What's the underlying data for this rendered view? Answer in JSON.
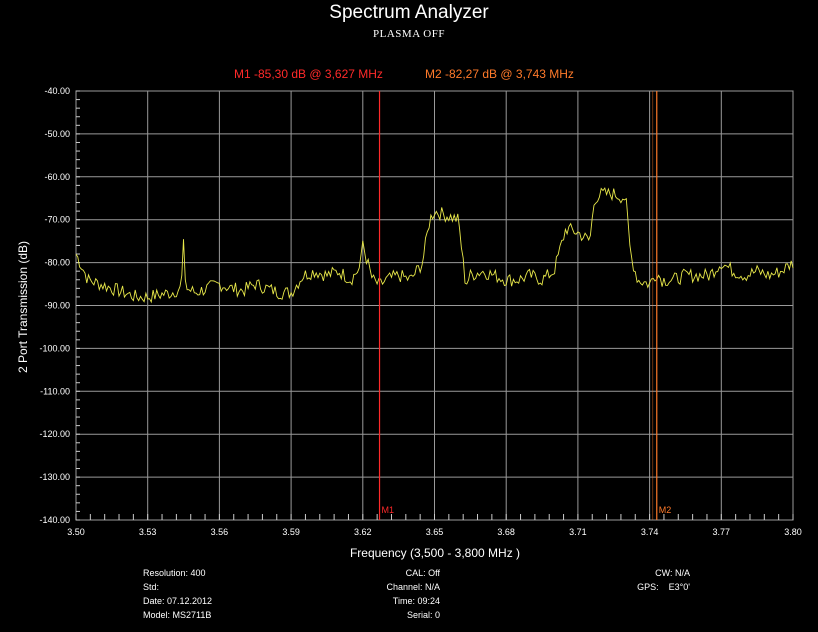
{
  "title": "Spectrum Analyzer",
  "subtitle": "PLASMA OFF",
  "markers": [
    {
      "name": "M1",
      "label": "M1  -85,30 dB @ 3,627 MHz",
      "freq": 3.627,
      "color": "#ff2a2a"
    },
    {
      "name": "M2",
      "label": "M2  -82,27 dB @ 3,743 MHz",
      "freq": 3.743,
      "color": "#ff7a2a"
    }
  ],
  "chart_data": {
    "type": "line",
    "title": "Spectrum Analyzer",
    "subtitle": "PLASMA OFF",
    "xlabel": "Frequency (3,500 - 3,800 MHz )",
    "ylabel": "2 Port Transmission (dB)",
    "xlim": [
      3.5,
      3.8
    ],
    "ylim": [
      -140,
      -40
    ],
    "xticks": [
      "3.50",
      "3.53",
      "3.56",
      "3.59",
      "3.62",
      "3.65",
      "3.68",
      "3.71",
      "3.74",
      "3.77",
      "3.80"
    ],
    "yticks": [
      "-40.00",
      "-50.00",
      "-60.00",
      "-70.00",
      "-80.00",
      "-90.00",
      "-100.00",
      "-110.00",
      "-120.00",
      "-130.00",
      "-140.00"
    ],
    "grid": true,
    "series": [
      {
        "color": "#e8e84a",
        "x": [
          3.5,
          3.505,
          3.51,
          3.515,
          3.52,
          3.525,
          3.53,
          3.535,
          3.54,
          3.544,
          3.545,
          3.546,
          3.55,
          3.555,
          3.56,
          3.565,
          3.57,
          3.575,
          3.58,
          3.585,
          3.59,
          3.595,
          3.6,
          3.605,
          3.61,
          3.615,
          3.619,
          3.62,
          3.621,
          3.624,
          3.627,
          3.63,
          3.635,
          3.64,
          3.645,
          3.648,
          3.65,
          3.655,
          3.66,
          3.663,
          3.665,
          3.67,
          3.675,
          3.68,
          3.685,
          3.69,
          3.695,
          3.7,
          3.703,
          3.705,
          3.71,
          3.715,
          3.717,
          3.72,
          3.725,
          3.73,
          3.732,
          3.735,
          3.74,
          3.743,
          3.745,
          3.75,
          3.755,
          3.76,
          3.765,
          3.77,
          3.775,
          3.78,
          3.785,
          3.79,
          3.795,
          3.8
        ],
        "y": [
          -78,
          -84,
          -85,
          -86,
          -87,
          -88,
          -88,
          -87.5,
          -87,
          -86,
          -76,
          -86,
          -87,
          -86,
          -85,
          -86,
          -86.5,
          -85,
          -86,
          -87,
          -87,
          -83,
          -82,
          -83,
          -82,
          -84,
          -81,
          -75,
          -78,
          -84,
          -85.3,
          -84,
          -83,
          -84,
          -80,
          -70,
          -68,
          -69,
          -70,
          -85,
          -83,
          -82,
          -83,
          -84,
          -84,
          -83,
          -84,
          -82,
          -76,
          -72,
          -73,
          -75,
          -65,
          -64,
          -64,
          -65,
          -78,
          -84,
          -85,
          -82.3,
          -84,
          -84,
          -83,
          -83,
          -83,
          -80,
          -82,
          -83,
          -82,
          -83,
          -82,
          -80
        ]
      }
    ]
  },
  "info": {
    "col1": [
      "Resolution: 400",
      "Std:",
      "Date: 07.12.2012",
      "Model: MS2711B"
    ],
    "col2": [
      "CAL: Off",
      "Channel: N/A",
      "Time: 09:24",
      "Serial: 0"
    ],
    "col3": [
      "CW: N/A",
      "",
      "GPS:    E3°0'"
    ]
  }
}
